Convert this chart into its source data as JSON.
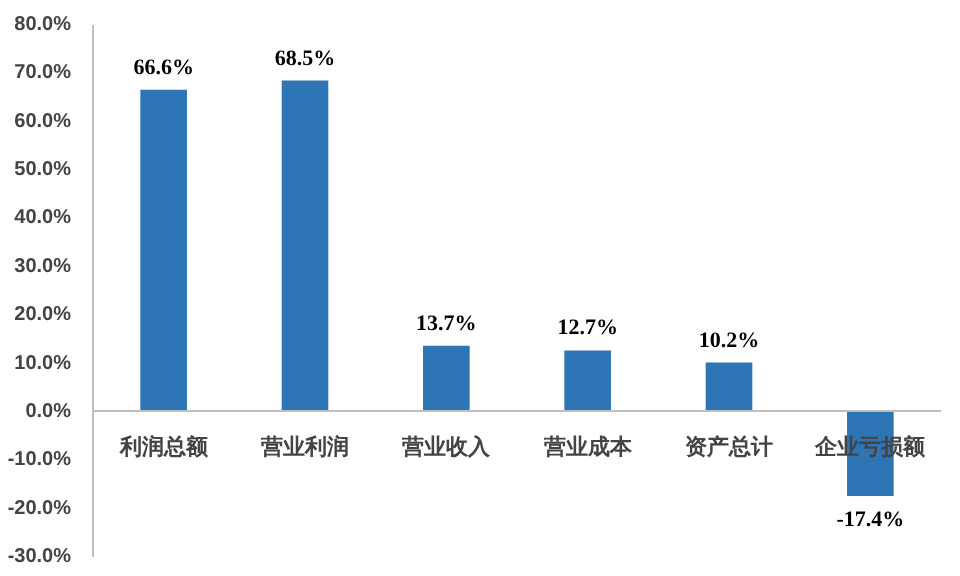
{
  "chart_data": {
    "type": "bar",
    "categories": [
      "利润总额",
      "营业利润",
      "营业收入",
      "营业成本",
      "资产总计",
      "企业亏损额"
    ],
    "values": [
      66.6,
      68.5,
      13.7,
      12.7,
      10.2,
      -17.4
    ],
    "color": "#2e75b6",
    "value_labels": [
      "66.6%",
      "68.5%",
      "13.7%",
      "12.7%",
      "10.2%",
      "-17.4%"
    ],
    "ylim": [
      -30,
      80
    ],
    "yticks": [
      {
        "value": -30,
        "label": "-30.0%"
      },
      {
        "value": -20,
        "label": "-20.0%"
      },
      {
        "value": -10,
        "label": "-10.0%"
      },
      {
        "value": 0,
        "label": "0.0%"
      },
      {
        "value": 10,
        "label": "10.0%"
      },
      {
        "value": 20,
        "label": "20.0%"
      },
      {
        "value": 30,
        "label": "30.0%"
      },
      {
        "value": 40,
        "label": "40.0%"
      },
      {
        "value": 50,
        "label": "50.0%"
      },
      {
        "value": 60,
        "label": "60.0%"
      },
      {
        "value": 70,
        "label": "70.0%"
      },
      {
        "value": 80,
        "label": "80.0%"
      }
    ],
    "grid": false
  }
}
